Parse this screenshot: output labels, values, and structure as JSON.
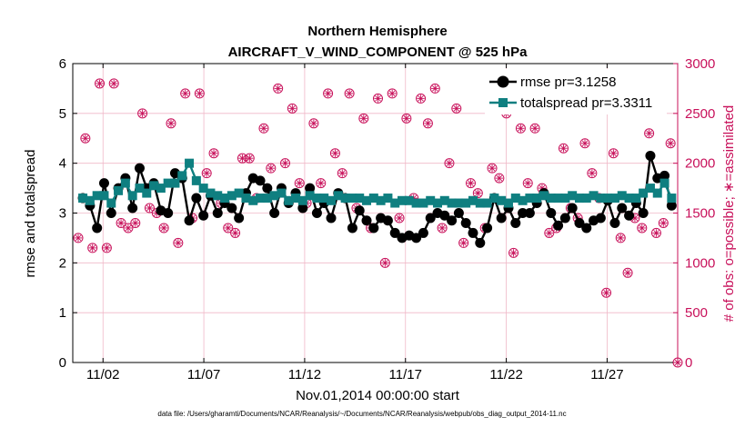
{
  "chart_data": {
    "type": "line",
    "title": "Northern Hemisphere",
    "subtitle": "AIRCRAFT_V_WIND_COMPONENT @ 525 hPa",
    "xlabel": "Nov.01,2014 00:00:00 start",
    "ylabel": "rmse and totalspread",
    "ylabel_right": "# of obs: o=possible; ∗=assimilated",
    "footnote": "data file: /Users/gharamti/Documents/NCAR/Reanalysis/~/Documents/NCAR/Reanalysis/webpub/obs_diag_output_2014-11.nc",
    "x_range": [
      0.5,
      30.5
    ],
    "x_ticks": [
      2,
      7,
      12,
      17,
      22,
      27
    ],
    "x_tick_labels": [
      "11/02",
      "11/07",
      "11/12",
      "11/17",
      "11/22",
      "11/27"
    ],
    "ylim": [
      0,
      6
    ],
    "y_ticks": [
      0,
      1,
      2,
      3,
      4,
      5,
      6
    ],
    "ylim_right": [
      0,
      3000
    ],
    "y_ticks_right": [
      0,
      500,
      1000,
      1500,
      2000,
      2500,
      3000
    ],
    "grid": true,
    "legend_position": "top-right",
    "colors": {
      "rmse": "#000000",
      "totalspread": "#0f7f80",
      "obs": "#c8105a",
      "grid": "#f0b8c8"
    },
    "series": [
      {
        "name": "rmse pr=3.1258",
        "color": "#000000",
        "marker": "circle",
        "values": [
          3.3,
          3.15,
          2.7,
          3.6,
          3.0,
          3.5,
          3.7,
          3.1,
          3.9,
          3.5,
          3.6,
          3.05,
          3.0,
          3.8,
          3.7,
          2.85,
          3.3,
          2.95,
          3.35,
          3.0,
          3.2,
          3.1,
          2.9,
          3.4,
          3.7,
          3.65,
          3.5,
          3.0,
          3.5,
          3.2,
          3.4,
          3.1,
          3.5,
          3.0,
          3.2,
          2.9,
          3.4,
          3.3,
          2.7,
          3.05,
          2.85,
          2.7,
          2.9,
          2.85,
          2.6,
          2.5,
          2.55,
          2.5,
          2.6,
          2.9,
          3.0,
          2.95,
          2.85,
          3.0,
          2.8,
          2.6,
          2.4,
          2.7,
          3.3,
          2.9,
          3.1,
          2.8,
          3.0,
          3.0,
          3.2,
          3.4,
          3.0,
          2.75,
          2.9,
          3.1,
          2.8,
          2.7,
          2.85,
          2.9,
          3.25,
          2.8,
          3.1,
          2.95,
          3.2,
          3.0,
          4.15,
          3.7,
          3.75,
          3.15
        ]
      },
      {
        "name": "totalspread pr=3.3311",
        "color": "#0f7f80",
        "marker": "square",
        "values": [
          3.3,
          3.25,
          3.35,
          3.35,
          3.2,
          3.45,
          3.6,
          3.35,
          3.5,
          3.4,
          3.55,
          3.5,
          3.6,
          3.6,
          3.75,
          4.0,
          3.65,
          3.5,
          3.4,
          3.35,
          3.3,
          3.35,
          3.4,
          3.3,
          3.25,
          3.3,
          3.3,
          3.35,
          3.4,
          3.25,
          3.3,
          3.25,
          3.35,
          3.3,
          3.3,
          3.25,
          3.35,
          3.3,
          3.3,
          3.3,
          3.25,
          3.3,
          3.25,
          3.3,
          3.2,
          3.25,
          3.25,
          3.2,
          3.2,
          3.25,
          3.2,
          3.25,
          3.2,
          3.2,
          3.2,
          3.25,
          3.2,
          3.2,
          3.3,
          3.25,
          3.2,
          3.3,
          3.25,
          3.3,
          3.3,
          3.35,
          3.3,
          3.3,
          3.3,
          3.35,
          3.3,
          3.3,
          3.35,
          3.3,
          3.3,
          3.3,
          3.35,
          3.3,
          3.3,
          3.4,
          3.5,
          3.4,
          3.6,
          3.3
        ]
      },
      {
        "name": "obs possible",
        "color": "#c8105a",
        "marker": "circle-open",
        "axis": "right",
        "values": [
          1250,
          2250,
          1150,
          2800,
          1150,
          2800,
          1400,
          1350,
          1400,
          2500,
          1550,
          1500,
          1350,
          2400,
          1200,
          2700,
          1450,
          2700,
          1900,
          2100,
          1600,
          1350,
          1300,
          2050,
          2050,
          1650,
          2350,
          1950,
          2750,
          2000,
          2550,
          1800,
          1600,
          2400,
          1800,
          2700,
          2100,
          1900,
          2700,
          1550,
          2450,
          1350,
          2650,
          1000,
          2700,
          1450,
          2450,
          1650,
          2650,
          2400,
          2750,
          1350,
          2000,
          2550,
          1200,
          1800,
          1700,
          1350,
          1950,
          1850,
          2500,
          1100,
          2350,
          1800,
          2350,
          1750,
          1300,
          1350,
          2150,
          1550,
          1450,
          2200,
          1900,
          1650,
          700,
          2100,
          1250,
          900,
          1450,
          1350,
          2300,
          1300,
          1400,
          2200,
          0
        ]
      },
      {
        "name": "obs assimilated",
        "color": "#c8105a",
        "marker": "asterisk",
        "axis": "right",
        "values": [
          1250,
          2250,
          1150,
          2800,
          1150,
          2800,
          1400,
          1350,
          1400,
          2500,
          1550,
          1500,
          1350,
          2400,
          1200,
          2700,
          1450,
          2700,
          1900,
          2100,
          1600,
          1350,
          1300,
          2050,
          2050,
          1650,
          2350,
          1950,
          2750,
          2000,
          2550,
          1800,
          1600,
          2400,
          1800,
          2700,
          2100,
          1900,
          2700,
          1550,
          2450,
          1350,
          2650,
          1000,
          2700,
          1450,
          2450,
          1650,
          2650,
          2400,
          2750,
          1350,
          2000,
          2550,
          1200,
          1800,
          1700,
          1350,
          1950,
          1850,
          2500,
          1100,
          2350,
          1800,
          2350,
          1750,
          1300,
          1350,
          2150,
          1550,
          1450,
          2200,
          1900,
          1650,
          700,
          2100,
          1250,
          900,
          1450,
          1350,
          2300,
          1300,
          1400,
          2200,
          0
        ]
      }
    ]
  }
}
